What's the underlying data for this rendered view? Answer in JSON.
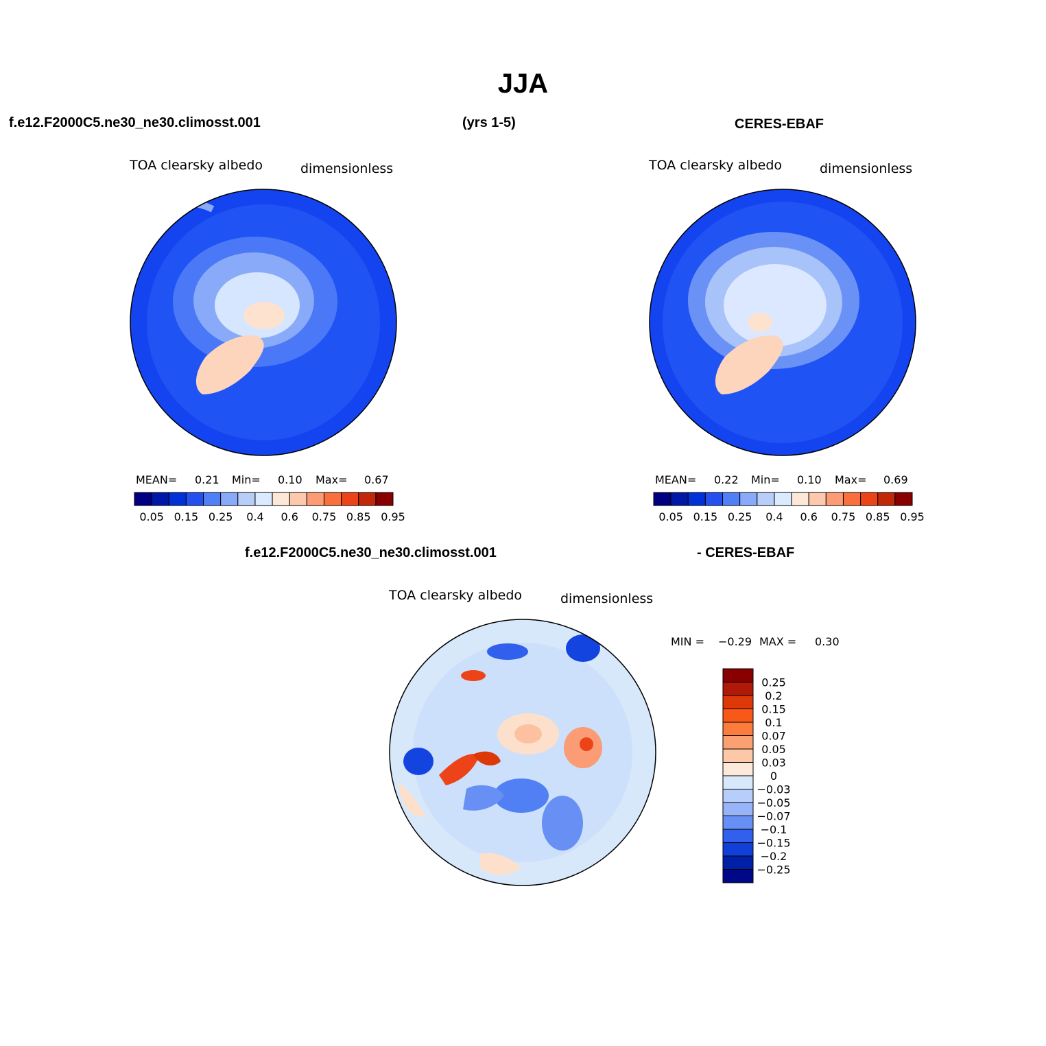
{
  "season": "JJA",
  "top": {
    "left_title": "f.e12.F2000C5.ne30_ne30.climosst.001",
    "center_title": "(yrs 1-5)",
    "right_title": "CERES-EBAF"
  },
  "panels": [
    {
      "variable": "TOA clearsky albedo",
      "units": "dimensionless",
      "mean_label": "MEAN=",
      "mean_value": "0.21",
      "min_label": "Min=",
      "min_value": "0.10",
      "max_label": "Max=",
      "max_value": "0.67"
    },
    {
      "variable": "TOA clearsky albedo",
      "units": "dimensionless",
      "mean_label": "MEAN=",
      "mean_value": "0.22",
      "min_label": "Min=",
      "min_value": "0.10",
      "max_label": "Max=",
      "max_value": "0.69"
    }
  ],
  "diff": {
    "title_left": "f.e12.F2000C5.ne30_ne30.climosst.001",
    "title_right": "- CERES-EBAF",
    "variable": "TOA clearsky albedo",
    "units": "dimensionless",
    "min_label": "MIN =",
    "min_value": "−0.29",
    "max_label": "MAX =",
    "max_value": "0.30"
  },
  "colorbar_abs": {
    "colors": [
      "#000080",
      "#0018a8",
      "#0030d8",
      "#2450f0",
      "#5080f8",
      "#88aaf8",
      "#b8cef8",
      "#daeaff",
      "#fde8d8",
      "#fdc8ac",
      "#fb9c74",
      "#f9703c",
      "#ec4418",
      "#c02808",
      "#880000"
    ],
    "labels": [
      "0.05",
      "0.15",
      "0.25",
      "0.4",
      "0.6",
      "0.75",
      "0.85",
      "0.95"
    ]
  },
  "colorbar_diff": {
    "colors": [
      "#880000",
      "#b01808",
      "#dc3808",
      "#f85818",
      "#fb7c3c",
      "#fba070",
      "#fdc8a8",
      "#fde9d9",
      "#d8e8fb",
      "#b8cefa",
      "#98b4f8",
      "#6890f4",
      "#3060ec",
      "#1040d8",
      "#0020a8",
      "#000888"
    ],
    "labels": [
      "0.25",
      "0.2",
      "0.15",
      "0.1",
      "0.07",
      "0.05",
      "0.03",
      "0",
      "−0.03",
      "−0.05",
      "−0.07",
      "−0.1",
      "−0.15",
      "−0.2",
      "−0.25"
    ]
  }
}
